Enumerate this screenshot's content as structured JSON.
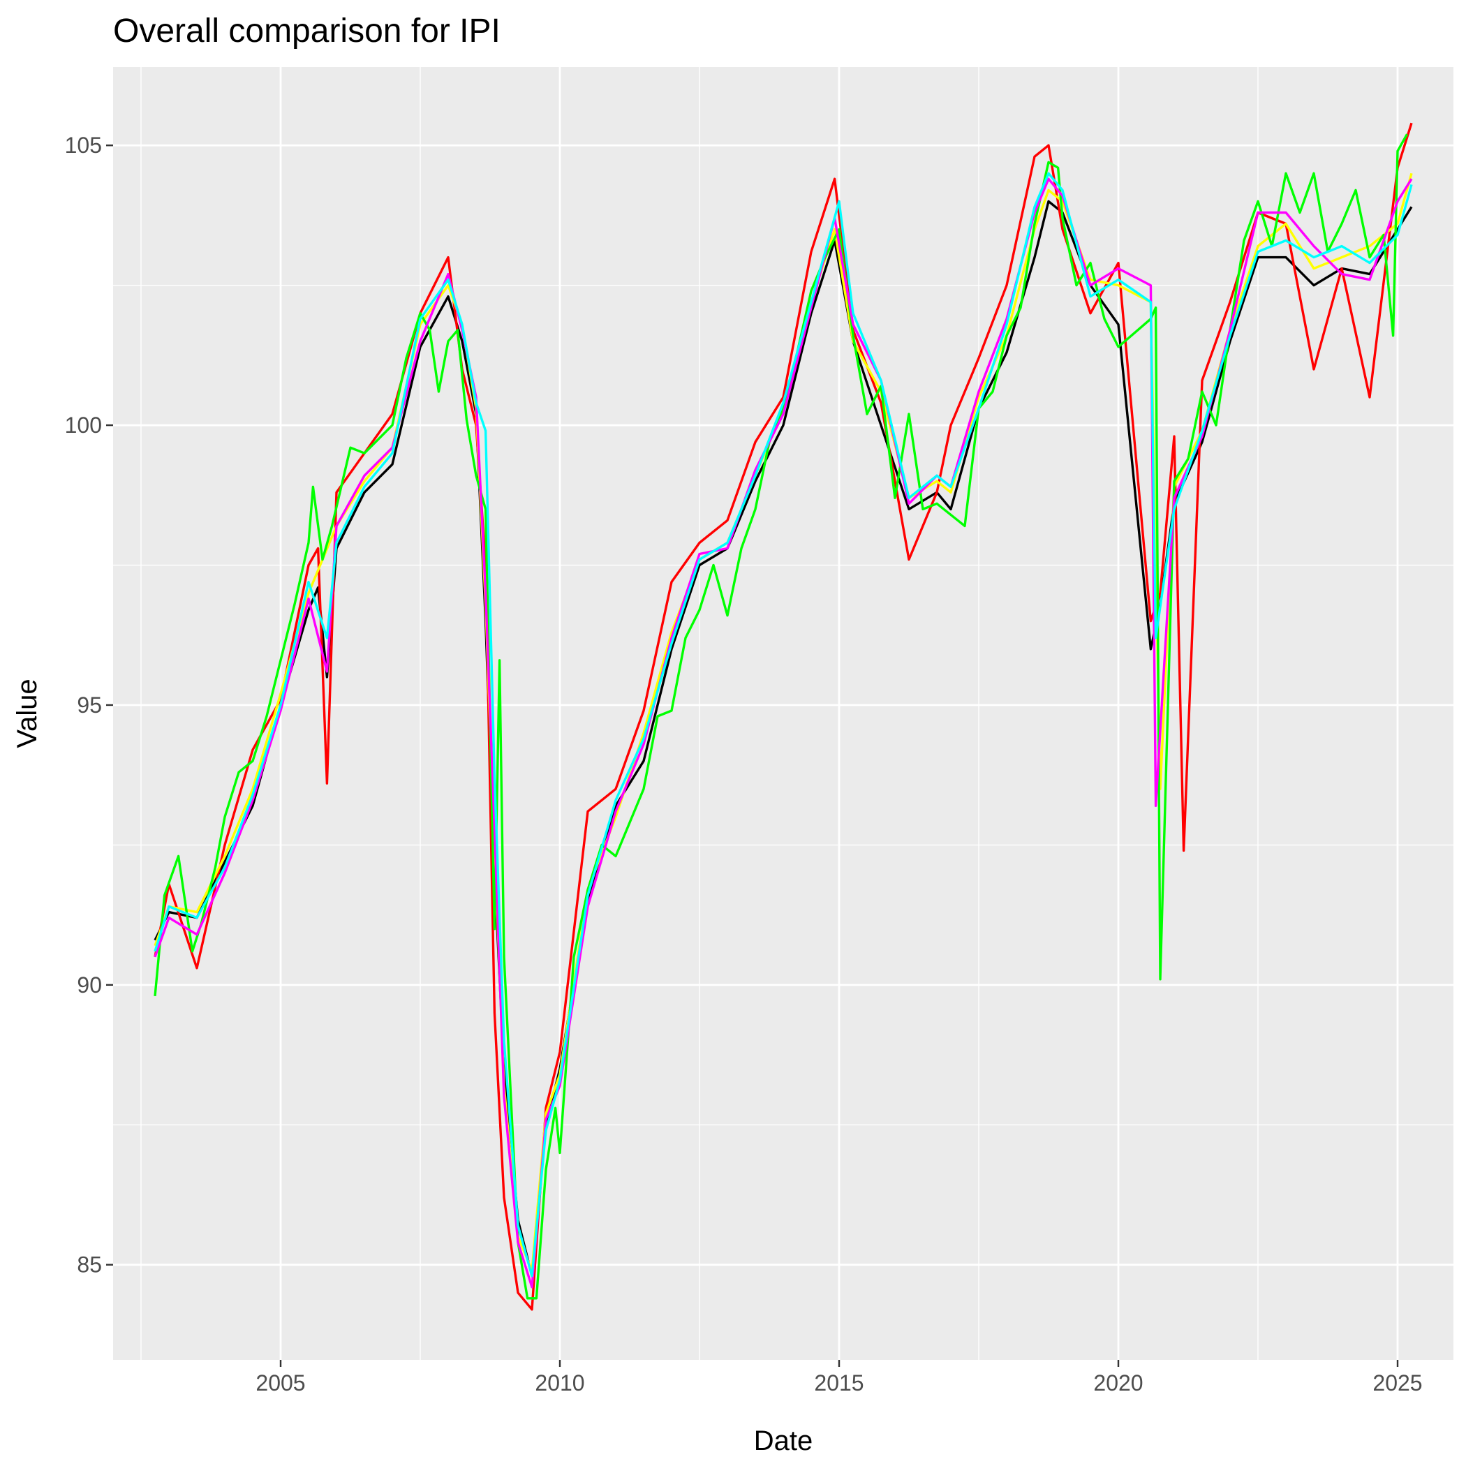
{
  "chart_data": {
    "type": "line",
    "title": "Overall comparison for IPI",
    "xlabel": "Date",
    "ylabel": "Value",
    "xlim": [
      2002.0,
      2026.0
    ],
    "ylim": [
      83.3,
      106.4
    ],
    "x_ticks": [
      2005,
      2010,
      2015,
      2020,
      2025
    ],
    "x_tick_labels": [
      "2005",
      "2010",
      "2015",
      "2020",
      "2025"
    ],
    "y_ticks": [
      85,
      90,
      95,
      100,
      105
    ],
    "y_tick_labels": [
      "85",
      "90",
      "95",
      "100",
      "105"
    ],
    "grid": true,
    "legend": "none",
    "series": [
      {
        "color": "#000000",
        "x": [
          2002.75,
          2003.0,
          2003.5,
          2004.0,
          2004.5,
          2005.0,
          2005.5,
          2005.67,
          2005.83,
          2006.0,
          2006.5,
          2007.0,
          2007.5,
          2008.0,
          2008.25,
          2008.5,
          2008.67,
          2008.83,
          2009.0,
          2009.25,
          2009.5,
          2009.75,
          2010.0,
          2010.5,
          2011.0,
          2011.5,
          2012.0,
          2012.5,
          2013.0,
          2013.5,
          2014.0,
          2014.5,
          2014.92,
          2015.25,
          2015.75,
          2016.25,
          2016.75,
          2017.0,
          2017.5,
          2018.0,
          2018.5,
          2018.75,
          2019.0,
          2019.5,
          2020.0,
          2020.58,
          2020.75,
          2021.0,
          2021.5,
          2022.0,
          2022.5,
          2023.0,
          2023.5,
          2024.0,
          2024.5,
          2025.0,
          2025.25
        ],
        "y": [
          90.8,
          91.3,
          91.2,
          92.2,
          93.2,
          95.0,
          96.7,
          97.1,
          95.5,
          97.8,
          98.8,
          99.3,
          101.4,
          102.3,
          101.5,
          100.2,
          96.5,
          92.0,
          88.5,
          85.8,
          84.8,
          87.5,
          88.5,
          91.5,
          93.2,
          94.0,
          96.0,
          97.5,
          97.8,
          99.0,
          100.0,
          102.0,
          103.3,
          101.5,
          100.0,
          98.5,
          98.8,
          98.5,
          100.3,
          101.3,
          103.0,
          104.0,
          103.8,
          102.5,
          101.8,
          96.0,
          96.8,
          98.6,
          99.7,
          101.5,
          103.0,
          103.0,
          102.5,
          102.8,
          102.7,
          103.5,
          103.9
        ]
      },
      {
        "color": "#ff0000",
        "x": [
          2002.75,
          2003.0,
          2003.5,
          2004.0,
          2004.5,
          2005.0,
          2005.5,
          2005.67,
          2005.83,
          2006.0,
          2006.5,
          2007.0,
          2007.5,
          2008.0,
          2008.25,
          2008.5,
          2008.67,
          2008.83,
          2009.0,
          2009.25,
          2009.5,
          2009.75,
          2010.0,
          2010.5,
          2011.0,
          2011.5,
          2012.0,
          2012.5,
          2013.0,
          2013.5,
          2014.0,
          2014.5,
          2014.92,
          2015.25,
          2015.75,
          2016.25,
          2016.75,
          2017.0,
          2017.5,
          2018.0,
          2018.5,
          2018.75,
          2019.0,
          2019.5,
          2020.0,
          2020.58,
          2020.75,
          2021.0,
          2021.17,
          2021.5,
          2022.0,
          2022.5,
          2023.0,
          2023.5,
          2024.0,
          2024.5,
          2025.0,
          2025.25
        ],
        "y": [
          90.5,
          91.8,
          90.3,
          92.5,
          94.2,
          95.1,
          97.5,
          97.8,
          93.6,
          98.8,
          99.5,
          100.2,
          102.0,
          103.0,
          101.0,
          100.0,
          97.5,
          89.5,
          86.2,
          84.5,
          84.2,
          87.8,
          88.8,
          93.1,
          93.5,
          94.9,
          97.2,
          97.9,
          98.3,
          99.7,
          100.5,
          103.1,
          104.4,
          101.7,
          100.4,
          97.6,
          98.8,
          100.0,
          101.2,
          102.5,
          104.8,
          105.0,
          103.5,
          102.0,
          102.9,
          96.5,
          97.0,
          99.8,
          92.4,
          100.8,
          102.2,
          103.8,
          103.6,
          101.0,
          102.8,
          100.5,
          104.6,
          105.4
        ]
      },
      {
        "color": "#ffff00",
        "x": [
          2002.75,
          2003.0,
          2003.5,
          2004.0,
          2004.5,
          2005.0,
          2005.5,
          2006.0,
          2006.5,
          2007.0,
          2007.5,
          2008.0,
          2008.25,
          2008.5,
          2008.67,
          2008.83,
          2009.0,
          2009.25,
          2009.5,
          2009.75,
          2010.0,
          2010.5,
          2011.0,
          2011.5,
          2012.0,
          2012.5,
          2013.0,
          2013.5,
          2014.0,
          2014.5,
          2014.92,
          2015.25,
          2015.75,
          2016.25,
          2016.75,
          2017.0,
          2017.5,
          2018.0,
          2018.5,
          2018.75,
          2019.0,
          2019.5,
          2020.0,
          2020.58,
          2020.75,
          2021.0,
          2021.5,
          2022.0,
          2022.5,
          2023.0,
          2023.5,
          2024.0,
          2024.5,
          2025.0,
          2025.25
        ],
        "y": [
          90.7,
          91.4,
          91.3,
          92.3,
          93.5,
          95.2,
          97.0,
          98.2,
          99.0,
          99.6,
          101.8,
          102.5,
          101.8,
          100.3,
          96.8,
          92.5,
          88.2,
          85.5,
          84.9,
          87.7,
          88.4,
          91.7,
          93.0,
          94.5,
          96.3,
          97.6,
          97.9,
          99.1,
          100.3,
          102.2,
          103.5,
          101.5,
          100.6,
          98.7,
          99.0,
          98.8,
          100.5,
          101.6,
          103.5,
          104.2,
          104.0,
          102.6,
          102.5,
          102.2,
          93.5,
          98.9,
          99.9,
          101.7,
          103.2,
          103.6,
          102.8,
          103.0,
          103.2,
          103.6,
          104.5
        ]
      },
      {
        "color": "#00ff00",
        "x": [
          2002.75,
          2002.92,
          2003.17,
          2003.42,
          2003.58,
          2003.83,
          2004.0,
          2004.25,
          2004.5,
          2004.75,
          2005.0,
          2005.25,
          2005.5,
          2005.58,
          2005.75,
          2005.92,
          2006.25,
          2006.5,
          2007.0,
          2007.25,
          2007.5,
          2007.67,
          2007.83,
          2008.0,
          2008.17,
          2008.33,
          2008.5,
          2008.67,
          2008.83,
          2008.92,
          2009.0,
          2009.25,
          2009.42,
          2009.58,
          2009.75,
          2009.92,
          2010.0,
          2010.25,
          2010.5,
          2010.75,
          2011.0,
          2011.25,
          2011.5,
          2011.75,
          2012.0,
          2012.25,
          2012.5,
          2012.75,
          2013.0,
          2013.25,
          2013.5,
          2013.75,
          2014.0,
          2014.25,
          2014.5,
          2014.75,
          2015.0,
          2015.25,
          2015.5,
          2015.75,
          2016.0,
          2016.25,
          2016.5,
          2016.75,
          2017.0,
          2017.25,
          2017.5,
          2017.75,
          2018.0,
          2018.25,
          2018.5,
          2018.75,
          2018.92,
          2019.0,
          2019.25,
          2019.5,
          2019.75,
          2020.0,
          2020.58,
          2020.67,
          2020.75,
          2021.0,
          2021.25,
          2021.5,
          2021.75,
          2022.0,
          2022.25,
          2022.5,
          2022.75,
          2023.0,
          2023.25,
          2023.5,
          2023.75,
          2024.0,
          2024.25,
          2024.5,
          2024.75,
          2024.92,
          2025.0,
          2025.17
        ],
        "y": [
          89.8,
          91.6,
          92.3,
          90.6,
          91.1,
          92.1,
          93.0,
          93.8,
          94.0,
          94.8,
          95.8,
          96.8,
          97.9,
          98.9,
          97.6,
          98.2,
          99.6,
          99.5,
          100.0,
          101.2,
          102.0,
          101.7,
          100.6,
          101.5,
          101.7,
          100.1,
          99.1,
          98.5,
          91.0,
          95.8,
          90.5,
          85.4,
          84.4,
          84.4,
          86.7,
          87.8,
          87.0,
          90.5,
          91.7,
          92.5,
          92.3,
          92.9,
          93.5,
          94.8,
          94.9,
          96.2,
          96.7,
          97.5,
          96.6,
          97.8,
          98.5,
          99.7,
          100.3,
          101.3,
          102.4,
          103.0,
          103.5,
          101.6,
          100.2,
          100.7,
          98.7,
          100.2,
          98.5,
          98.6,
          98.4,
          98.2,
          100.3,
          100.6,
          101.6,
          102.1,
          103.6,
          104.7,
          104.6,
          103.7,
          102.5,
          102.9,
          101.9,
          101.4,
          101.9,
          102.1,
          90.1,
          99.0,
          99.4,
          100.6,
          100.0,
          101.7,
          103.3,
          104.0,
          103.2,
          104.5,
          103.8,
          104.5,
          103.1,
          103.6,
          104.2,
          103.0,
          103.4,
          101.6,
          104.9,
          105.2
        ]
      },
      {
        "color": "#ff00ff",
        "x": [
          2002.75,
          2003.0,
          2003.5,
          2004.0,
          2004.5,
          2005.0,
          2005.5,
          2005.83,
          2006.0,
          2006.5,
          2007.0,
          2007.5,
          2008.0,
          2008.25,
          2008.5,
          2008.67,
          2008.83,
          2009.0,
          2009.25,
          2009.5,
          2009.75,
          2010.0,
          2010.5,
          2011.0,
          2011.5,
          2012.0,
          2012.5,
          2013.0,
          2013.5,
          2014.0,
          2014.5,
          2014.92,
          2015.25,
          2015.75,
          2016.25,
          2016.75,
          2017.0,
          2017.5,
          2018.0,
          2018.5,
          2018.75,
          2019.0,
          2019.5,
          2020.0,
          2020.58,
          2020.67,
          2021.0,
          2021.5,
          2022.0,
          2022.5,
          2023.0,
          2023.5,
          2024.0,
          2024.5,
          2025.0,
          2025.25
        ],
        "y": [
          90.5,
          91.2,
          90.9,
          92.0,
          93.3,
          94.9,
          96.9,
          95.6,
          98.2,
          99.1,
          99.6,
          101.5,
          102.7,
          101.7,
          100.5,
          97.0,
          92.8,
          88.0,
          85.4,
          84.6,
          87.6,
          88.2,
          91.4,
          93.1,
          94.3,
          96.2,
          97.7,
          97.8,
          99.2,
          100.2,
          102.1,
          103.7,
          101.8,
          100.8,
          98.6,
          99.1,
          98.9,
          100.6,
          101.9,
          103.8,
          104.4,
          104.1,
          102.5,
          102.8,
          102.5,
          93.2,
          98.7,
          99.8,
          101.7,
          103.8,
          103.8,
          103.2,
          102.7,
          102.6,
          104.0,
          104.4
        ]
      },
      {
        "color": "#00ffff",
        "x": [
          2002.75,
          2003.0,
          2003.5,
          2004.0,
          2004.5,
          2005.0,
          2005.5,
          2005.83,
          2006.0,
          2006.5,
          2007.0,
          2007.5,
          2008.0,
          2008.25,
          2008.5,
          2008.67,
          2008.83,
          2009.0,
          2009.25,
          2009.5,
          2009.75,
          2010.0,
          2010.5,
          2011.0,
          2011.5,
          2012.0,
          2012.5,
          2013.0,
          2013.5,
          2014.0,
          2014.5,
          2015.0,
          2015.25,
          2015.75,
          2016.25,
          2016.75,
          2017.0,
          2017.5,
          2018.0,
          2018.5,
          2018.75,
          2019.0,
          2019.5,
          2020.0,
          2020.58,
          2020.67,
          2021.0,
          2021.5,
          2022.0,
          2022.5,
          2023.0,
          2023.5,
          2024.0,
          2024.5,
          2025.0,
          2025.25
        ],
        "y": [
          90.6,
          91.4,
          91.2,
          92.1,
          93.4,
          95.0,
          97.2,
          96.2,
          97.9,
          98.9,
          99.5,
          101.9,
          102.6,
          101.8,
          100.4,
          99.9,
          93.7,
          89.0,
          85.7,
          84.8,
          87.4,
          88.3,
          91.6,
          93.3,
          94.4,
          96.1,
          97.6,
          97.9,
          99.1,
          100.4,
          102.2,
          104.0,
          102.0,
          100.8,
          98.7,
          99.1,
          98.9,
          100.3,
          101.8,
          103.9,
          104.5,
          104.2,
          102.3,
          102.6,
          102.2,
          96.2,
          98.5,
          99.9,
          101.6,
          103.1,
          103.3,
          103.0,
          103.2,
          102.9,
          103.4,
          104.3
        ]
      }
    ]
  }
}
